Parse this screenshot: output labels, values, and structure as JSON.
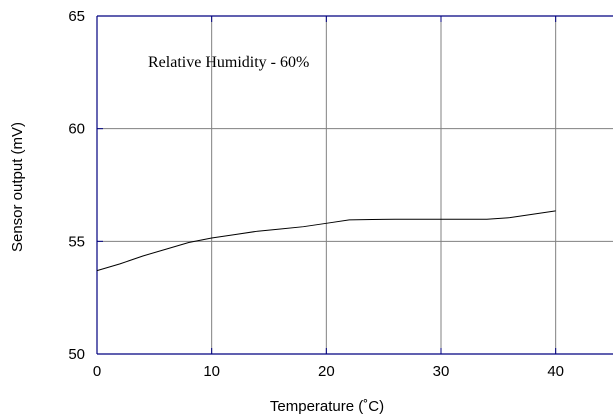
{
  "chart_data": {
    "type": "line",
    "title": "",
    "xlabel": "Temperature (˚C)",
    "ylabel": "Sensor output (mV)",
    "xlim": [
      0,
      45
    ],
    "ylim": [
      50,
      65
    ],
    "x_ticks": [
      0,
      10,
      20,
      30,
      40
    ],
    "y_ticks": [
      50,
      55,
      60,
      65
    ],
    "x_tick_labels": [
      "0",
      "10",
      "20",
      "30",
      "40"
    ],
    "y_tick_labels": [
      "50",
      "55",
      "60",
      "65"
    ],
    "grid": true,
    "annotation": "Relative Humidity - 60%",
    "series": [
      {
        "x": [
          0,
          2,
          4,
          6,
          8,
          10,
          12,
          14,
          16,
          18,
          20,
          22,
          24,
          26,
          28,
          30,
          32,
          34,
          36,
          38,
          40
        ],
        "values": [
          53.7,
          54.0,
          54.35,
          54.65,
          54.95,
          55.15,
          55.3,
          55.45,
          55.55,
          55.65,
          55.8,
          55.95,
          55.97,
          55.98,
          55.98,
          55.98,
          55.98,
          55.98,
          56.05,
          56.2,
          56.35
        ]
      }
    ],
    "colors": {
      "line": "#000000",
      "frame": "#000080",
      "grid": "#808080"
    }
  }
}
